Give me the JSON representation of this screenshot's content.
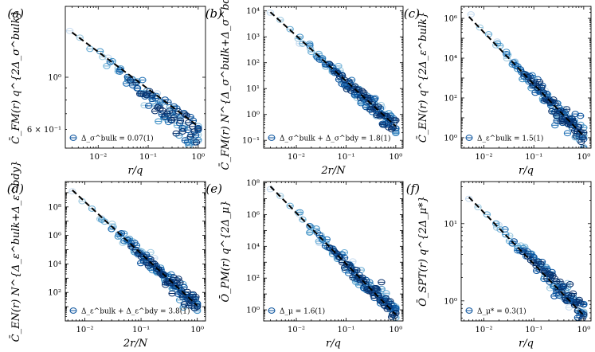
{
  "chart_data": [
    {
      "panel": "(a)",
      "type": "scatter",
      "xscale": "log",
      "yscale": "log",
      "xlabel": "r/q",
      "ylabel": "C̄_FM(r) q^{2Δ_σ^bulk}",
      "xlim": [
        0.0022,
        1.4
      ],
      "ylim": [
        0.5,
        2.0
      ],
      "xticks": [
        {
          "v": 0.01,
          "label": "10⁻²"
        },
        {
          "v": 0.1,
          "label": "10⁻¹"
        },
        {
          "v": 1,
          "label": "10⁰"
        }
      ],
      "yticks": [
        {
          "v": 1,
          "label": "10⁰"
        },
        {
          "v": 0.6,
          "label": "6 × 10⁻¹"
        }
      ],
      "fit": {
        "x": [
          0.003,
          1.0
        ],
        "y": [
          1.55,
          0.62
        ]
      },
      "cloud": {
        "x0": 0.0027,
        "x1": 1.0,
        "y0": 1.6,
        "y1": 0.57,
        "spread": 0.06,
        "density": 0.6
      },
      "legend": {
        "text": "Δ_σ^bulk = 0.07(1)"
      }
    },
    {
      "panel": "(b)",
      "type": "scatter",
      "xscale": "log",
      "yscale": "log",
      "xlabel": "2r/N",
      "ylabel": "C̄_FM(r) N^{Δ_σ^bulk+Δ_σ^bdy}",
      "xlim": [
        0.0022,
        1.4
      ],
      "ylim": [
        0.05,
        15000
      ],
      "xticks": [
        {
          "v": 0.01,
          "label": "10⁻²"
        },
        {
          "v": 0.1,
          "label": "10⁻¹"
        },
        {
          "v": 1,
          "label": "10⁰"
        }
      ],
      "yticks": [
        {
          "v": 0.1,
          "label": "10⁻¹"
        },
        {
          "v": 1,
          "label": "10⁰"
        },
        {
          "v": 10,
          "label": "10¹"
        },
        {
          "v": 100,
          "label": "10²"
        },
        {
          "v": 1000,
          "label": "10³"
        },
        {
          "v": 10000,
          "label": "10⁴"
        }
      ],
      "fit": {
        "x": [
          0.003,
          1.0
        ],
        "y": [
          9000,
          0.35
        ]
      },
      "cloud": {
        "x0": 0.003,
        "x1": 1.0,
        "y0": 9000,
        "y1": 0.35,
        "spread": 0.35,
        "density": 0.8
      },
      "legend": {
        "text": "Δ_σ^bulk + Δ_σ^bdy = 1.8(1)"
      }
    },
    {
      "panel": "(c)",
      "type": "scatter",
      "xscale": "log",
      "yscale": "log",
      "xlabel": "r/q",
      "ylabel": "C̄_EN(r) q^{2Δ_ε^bulk}",
      "xlim": [
        0.0035,
        1.4
      ],
      "ylim": [
        0.3,
        4000000
      ],
      "xticks": [
        {
          "v": 0.01,
          "label": "10⁻²"
        },
        {
          "v": 0.1,
          "label": "10⁻¹"
        },
        {
          "v": 1,
          "label": "10⁰"
        }
      ],
      "yticks": [
        {
          "v": 1,
          "label": "10⁰"
        },
        {
          "v": 100,
          "label": "10²"
        },
        {
          "v": 10000,
          "label": "10⁴"
        },
        {
          "v": 1000000,
          "label": "10⁶"
        }
      ],
      "fit": {
        "x": [
          0.005,
          1.0
        ],
        "y": [
          1200000,
          1.2
        ]
      },
      "cloud": {
        "x0": 0.0055,
        "x1": 1.0,
        "y0": 1500000,
        "y1": 1.2,
        "spread": 0.55,
        "density": 0.8
      },
      "legend": {
        "text": "Δ_ε^bulk = 1.5(1)"
      }
    },
    {
      "panel": "(d)",
      "type": "scatter",
      "xscale": "log",
      "yscale": "log",
      "xlabel": "2r/N",
      "ylabel": "C̄_EN(r) N^{Δ_ε^bulk+Δ_ε^bdy}",
      "xlim": [
        0.0045,
        1.4
      ],
      "ylim": [
        1,
        6000000000
      ],
      "xticks": [
        {
          "v": 0.01,
          "label": "10⁻²"
        },
        {
          "v": 0.1,
          "label": "10⁻¹"
        },
        {
          "v": 1,
          "label": "10⁰"
        }
      ],
      "yticks": [
        {
          "v": 100,
          "label": "10²"
        },
        {
          "v": 10000,
          "label": "10⁴"
        },
        {
          "v": 1000000,
          "label": "10⁶"
        },
        {
          "v": 100000000,
          "label": "10⁸"
        }
      ],
      "fit": {
        "x": [
          0.006,
          1.0
        ],
        "y": [
          1500000000,
          12
        ]
      },
      "cloud": {
        "x0": 0.006,
        "x1": 1.0,
        "y0": 1200000000,
        "y1": 15,
        "spread": 0.6,
        "density": 0.8
      },
      "legend": {
        "text": "Δ_ε^bulk + Δ_ε^bdy = 3.8(1)"
      }
    },
    {
      "panel": "(e)",
      "type": "scatter",
      "xscale": "log",
      "yscale": "log",
      "xlabel": "r/q",
      "ylabel": "Ō_PM(r) q^{2Δ_μ}",
      "xlim": [
        0.0022,
        1.4
      ],
      "ylim": [
        0.2,
        120000000
      ],
      "xticks": [
        {
          "v": 0.01,
          "label": "10⁻²"
        },
        {
          "v": 0.1,
          "label": "10⁻¹"
        },
        {
          "v": 1,
          "label": "10⁰"
        }
      ],
      "yticks": [
        {
          "v": 1,
          "label": "10⁰"
        },
        {
          "v": 100,
          "label": "10²"
        },
        {
          "v": 10000,
          "label": "10⁴"
        },
        {
          "v": 1000000,
          "label": "10⁶"
        },
        {
          "v": 100000000,
          "label": "10⁸"
        }
      ],
      "fit": {
        "x": [
          0.003,
          1.0
        ],
        "y": [
          60000000,
          0.5
        ]
      },
      "cloud": {
        "x0": 0.003,
        "x1": 1.0,
        "y0": 60000000,
        "y1": 0.7,
        "spread": 0.6,
        "density": 0.8
      },
      "legend": {
        "text": "Δ_μ = 1.6(1)"
      }
    },
    {
      "panel": "(f)",
      "type": "scatter",
      "xscale": "log",
      "yscale": "log",
      "xlabel": "r/q",
      "ylabel": "Ō_SPT(r) q^{2Δ_μ*}",
      "xlim": [
        0.0035,
        1.4
      ],
      "ylim": [
        0.55,
        35
      ],
      "xticks": [
        {
          "v": 0.01,
          "label": "10⁻²"
        },
        {
          "v": 0.1,
          "label": "10⁻¹"
        },
        {
          "v": 1,
          "label": "10⁰"
        }
      ],
      "yticks": [
        {
          "v": 1,
          "label": "10⁰"
        },
        {
          "v": 10,
          "label": "10¹"
        }
      ],
      "fit": {
        "x": [
          0.005,
          1.0
        ],
        "y": [
          22,
          0.65
        ]
      },
      "cloud": {
        "x0": 0.005,
        "x1": 1.0,
        "y0": 22,
        "y1": 0.75,
        "spread": 0.14,
        "density": 0.7
      },
      "legend": {
        "text": "Δ_μ* = 0.3(1)"
      }
    }
  ],
  "colors": {
    "series_palette": [
      "#c6dbef",
      "#9ecae1",
      "#6baed6",
      "#4292c6",
      "#2171b5",
      "#08519c",
      "#08306b"
    ],
    "fit_line": "#000000",
    "axes": "#000000"
  },
  "panel_labels": [
    "(a)",
    "(b)",
    "(c)",
    "(d)",
    "(e)",
    "(f)"
  ]
}
